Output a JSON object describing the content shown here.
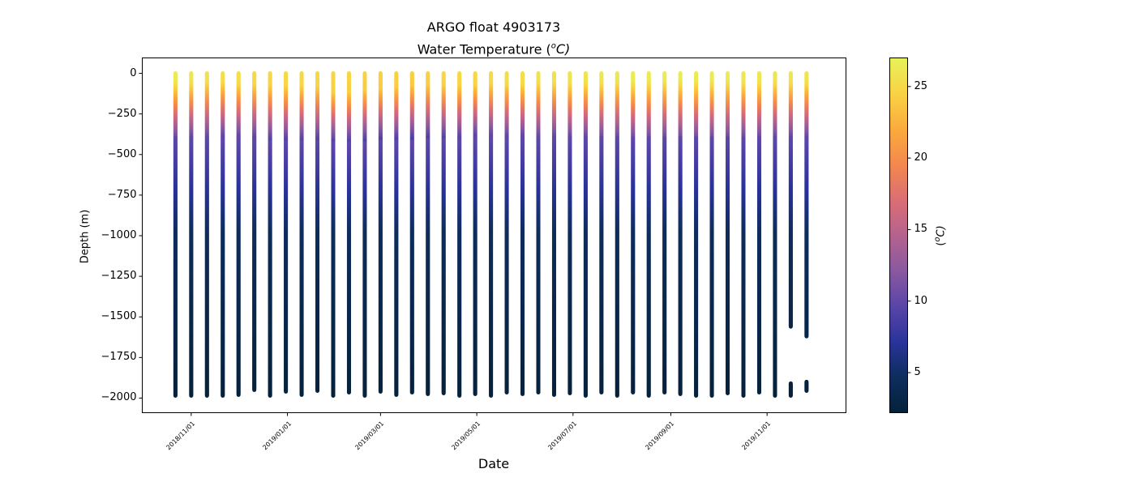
{
  "chart_data": {
    "type": "scatter",
    "title": "ARGO float 4903173",
    "subtitle_text": "Water Temperature (",
    "subtitle_sup": "o",
    "subtitle_unit": "C)",
    "xlabel": "Date",
    "ylabel": "Depth (m)",
    "x_axis_type": "date",
    "xlim": [
      "2018-10-01",
      "2019-12-21"
    ],
    "ylim": [
      -2090,
      95
    ],
    "x_ticks": [
      "2018-11-01",
      "2019-01-01",
      "2019-03-01",
      "2019-05-01",
      "2019-07-01",
      "2019-09-01",
      "2019-11-01"
    ],
    "x_tick_labels": [
      "2018/11/01",
      "2019/01/01",
      "2019/03/01",
      "2019/05/01",
      "2019/07/01",
      "2019/09/01",
      "2019/11/01"
    ],
    "y_ticks": [
      0,
      -250,
      -500,
      -750,
      -1000,
      -1250,
      -1500,
      -1750,
      -2000
    ],
    "y_tick_labels": [
      "0",
      "−250",
      "−500",
      "−750",
      "−1000",
      "−1250",
      "−1500",
      "−1750",
      "−2000"
    ],
    "grid": false,
    "colormap": "thermal",
    "colorbar": {
      "label_text": "(",
      "label_sup": "o",
      "label_unit": "C)",
      "range": [
        2.2,
        27.0
      ],
      "ticks": [
        5,
        10,
        15,
        20,
        25
      ],
      "tick_labels": [
        "5",
        "10",
        "15",
        "20",
        "25"
      ],
      "stops": [
        "#05213a",
        "#0d2d5e",
        "#2a339a",
        "#5a45a8",
        "#8a58a0",
        "#b5628f",
        "#db6e74",
        "#f3884e",
        "#fbab3d",
        "#f9d344",
        "#e7f25a"
      ]
    },
    "profiles": [
      {
        "date": "2018-10-22",
        "max_depth": -1985,
        "surface_temp": 26.5,
        "mixed_layer": 60,
        "thermocline_bottom": 400
      },
      {
        "date": "2018-11-01",
        "max_depth": -1985,
        "surface_temp": 26.0,
        "mixed_layer": 65,
        "thermocline_bottom": 400
      },
      {
        "date": "2018-11-11",
        "max_depth": -1985,
        "surface_temp": 25.8,
        "mixed_layer": 60,
        "thermocline_bottom": 400
      },
      {
        "date": "2018-11-21",
        "max_depth": -1985,
        "surface_temp": 25.5,
        "mixed_layer": 60,
        "thermocline_bottom": 400
      },
      {
        "date": "2018-12-01",
        "max_depth": -1980,
        "surface_temp": 25.5,
        "mixed_layer": 70,
        "thermocline_bottom": 400
      },
      {
        "date": "2018-12-11",
        "max_depth": -1950,
        "surface_temp": 25.2,
        "mixed_layer": 75,
        "thermocline_bottom": 410
      },
      {
        "date": "2018-12-21",
        "max_depth": -1985,
        "surface_temp": 25.0,
        "mixed_layer": 80,
        "thermocline_bottom": 420
      },
      {
        "date": "2018-12-31",
        "max_depth": -1960,
        "surface_temp": 25.0,
        "mixed_layer": 85,
        "thermocline_bottom": 420
      },
      {
        "date": "2019-01-10",
        "max_depth": -1980,
        "surface_temp": 25.0,
        "mixed_layer": 85,
        "thermocline_bottom": 420
      },
      {
        "date": "2019-01-20",
        "max_depth": -1955,
        "surface_temp": 25.0,
        "mixed_layer": 90,
        "thermocline_bottom": 420
      },
      {
        "date": "2019-01-30",
        "max_depth": -1985,
        "surface_temp": 24.8,
        "mixed_layer": 120,
        "thermocline_bottom": 430
      },
      {
        "date": "2019-02-09",
        "max_depth": -1965,
        "surface_temp": 24.8,
        "mixed_layer": 120,
        "thermocline_bottom": 430
      },
      {
        "date": "2019-02-19",
        "max_depth": -1985,
        "surface_temp": 24.5,
        "mixed_layer": 110,
        "thermocline_bottom": 430
      },
      {
        "date": "2019-03-01",
        "max_depth": -1960,
        "surface_temp": 24.5,
        "mixed_layer": 100,
        "thermocline_bottom": 420
      },
      {
        "date": "2019-03-11",
        "max_depth": -1980,
        "surface_temp": 24.5,
        "mixed_layer": 90,
        "thermocline_bottom": 420
      },
      {
        "date": "2019-03-21",
        "max_depth": -1965,
        "surface_temp": 24.3,
        "mixed_layer": 80,
        "thermocline_bottom": 420
      },
      {
        "date": "2019-03-31",
        "max_depth": -1975,
        "surface_temp": 24.5,
        "mixed_layer": 80,
        "thermocline_bottom": 410
      },
      {
        "date": "2019-04-10",
        "max_depth": -1970,
        "surface_temp": 24.8,
        "mixed_layer": 80,
        "thermocline_bottom": 410
      },
      {
        "date": "2019-04-20",
        "max_depth": -1985,
        "surface_temp": 25.0,
        "mixed_layer": 80,
        "thermocline_bottom": 410
      },
      {
        "date": "2019-04-30",
        "max_depth": -1975,
        "surface_temp": 25.0,
        "mixed_layer": 75,
        "thermocline_bottom": 400
      },
      {
        "date": "2019-05-10",
        "max_depth": -1985,
        "surface_temp": 25.2,
        "mixed_layer": 70,
        "thermocline_bottom": 400
      },
      {
        "date": "2019-05-20",
        "max_depth": -1965,
        "surface_temp": 25.5,
        "mixed_layer": 70,
        "thermocline_bottom": 400
      },
      {
        "date": "2019-05-30",
        "max_depth": -1975,
        "surface_temp": 25.5,
        "mixed_layer": 70,
        "thermocline_bottom": 400
      },
      {
        "date": "2019-06-09",
        "max_depth": -1965,
        "surface_temp": 25.8,
        "mixed_layer": 65,
        "thermocline_bottom": 400
      },
      {
        "date": "2019-06-19",
        "max_depth": -1980,
        "surface_temp": 25.8,
        "mixed_layer": 65,
        "thermocline_bottom": 400
      },
      {
        "date": "2019-06-29",
        "max_depth": -1970,
        "surface_temp": 26.0,
        "mixed_layer": 65,
        "thermocline_bottom": 400
      },
      {
        "date": "2019-07-09",
        "max_depth": -1985,
        "surface_temp": 26.0,
        "mixed_layer": 60,
        "thermocline_bottom": 400
      },
      {
        "date": "2019-07-19",
        "max_depth": -1965,
        "surface_temp": 26.2,
        "mixed_layer": 60,
        "thermocline_bottom": 400
      },
      {
        "date": "2019-07-29",
        "max_depth": -1985,
        "surface_temp": 26.2,
        "mixed_layer": 60,
        "thermocline_bottom": 400
      },
      {
        "date": "2019-08-08",
        "max_depth": -1965,
        "surface_temp": 26.5,
        "mixed_layer": 60,
        "thermocline_bottom": 400
      },
      {
        "date": "2019-08-18",
        "max_depth": -1985,
        "surface_temp": 26.5,
        "mixed_layer": 55,
        "thermocline_bottom": 400
      },
      {
        "date": "2019-08-28",
        "max_depth": -1965,
        "surface_temp": 26.5,
        "mixed_layer": 55,
        "thermocline_bottom": 400
      },
      {
        "date": "2019-09-07",
        "max_depth": -1975,
        "surface_temp": 26.5,
        "mixed_layer": 55,
        "thermocline_bottom": 400
      },
      {
        "date": "2019-09-17",
        "max_depth": -1985,
        "surface_temp": 26.5,
        "mixed_layer": 55,
        "thermocline_bottom": 400
      },
      {
        "date": "2019-09-27",
        "max_depth": -1985,
        "surface_temp": 26.5,
        "mixed_layer": 55,
        "thermocline_bottom": 400
      },
      {
        "date": "2019-10-07",
        "max_depth": -1970,
        "surface_temp": 26.5,
        "mixed_layer": 55,
        "thermocline_bottom": 400
      },
      {
        "date": "2019-10-17",
        "max_depth": -1985,
        "surface_temp": 26.2,
        "mixed_layer": 60,
        "thermocline_bottom": 400
      },
      {
        "date": "2019-10-27",
        "max_depth": -1965,
        "surface_temp": 26.2,
        "mixed_layer": 60,
        "thermocline_bottom": 400
      },
      {
        "date": "2019-11-06",
        "max_depth": -1985,
        "surface_temp": 26.0,
        "mixed_layer": 60,
        "thermocline_bottom": 400
      },
      {
        "date": "2019-11-16",
        "max_depth": -1985,
        "surface_temp": 26.0,
        "mixed_layer": 60,
        "thermocline_bottom": 400,
        "gap": [
          -1910,
          -1560
        ]
      },
      {
        "date": "2019-11-26",
        "max_depth": -1955,
        "surface_temp": 26.0,
        "mixed_layer": 60,
        "thermocline_bottom": 400,
        "gap": [
          -1900,
          -1615
        ]
      }
    ]
  }
}
